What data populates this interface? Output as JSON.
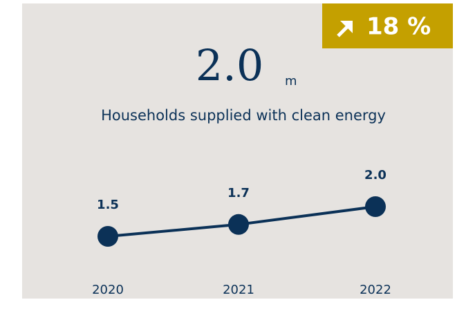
{
  "headline": {
    "value": "2.0",
    "unit": "m",
    "change": "18 %",
    "label": "Households supplied with clean energy"
  },
  "chart_data": {
    "type": "line",
    "categories": [
      "2020",
      "2021",
      "2022"
    ],
    "values": [
      1.5,
      1.7,
      2.0
    ],
    "value_labels": [
      "1.5",
      "1.7",
      "2.0"
    ],
    "color": "#0b3157"
  }
}
